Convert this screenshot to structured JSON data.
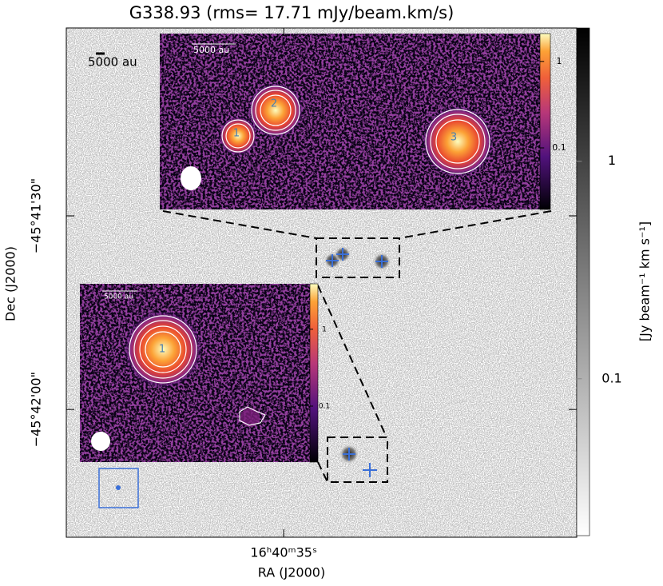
{
  "chart_data": {
    "type": "image",
    "title": "G338.93 (rms= 17.71 mJy/beam.km/s)",
    "x_label": "RA (J2000)",
    "y_label": "Dec (J2000)",
    "colorbar_label": "[Jy beam⁻¹ km s⁻¹]",
    "xlim": [
      38.22,
      30.66
    ],
    "xticks": [
      {
        "value": 35,
        "label": "16ʰ40ᵐ35ˢ"
      }
    ],
    "ylim": [
      -45.68358,
      -45.7055
    ],
    "yticks": [
      {
        "value": -45.691667,
        "label": "−45°41'30\""
      },
      {
        "value": -45.7,
        "label": "−45°42'00\""
      }
    ],
    "colorbar_lim": [
      0.019,
      4.1
    ],
    "colorbar_ticks": [
      1,
      0.1
    ],
    "log_scale": true,
    "scale_bar_label": "5000 au",
    "insets": [
      {
        "scale_bar_label": "5000 au",
        "colorbar_lim": [
          0.0194,
          2.1
        ],
        "colorbar_ticks": [
          1,
          0.1
        ],
        "source_labels": [
          "1",
          "2",
          "3"
        ]
      },
      {
        "scale_bar_label": "5000 au",
        "colorbar_lim": [
          0.0187,
          3.9
        ],
        "colorbar_ticks": [
          1,
          0.1
        ],
        "source_labels": [
          "1"
        ]
      }
    ]
  }
}
